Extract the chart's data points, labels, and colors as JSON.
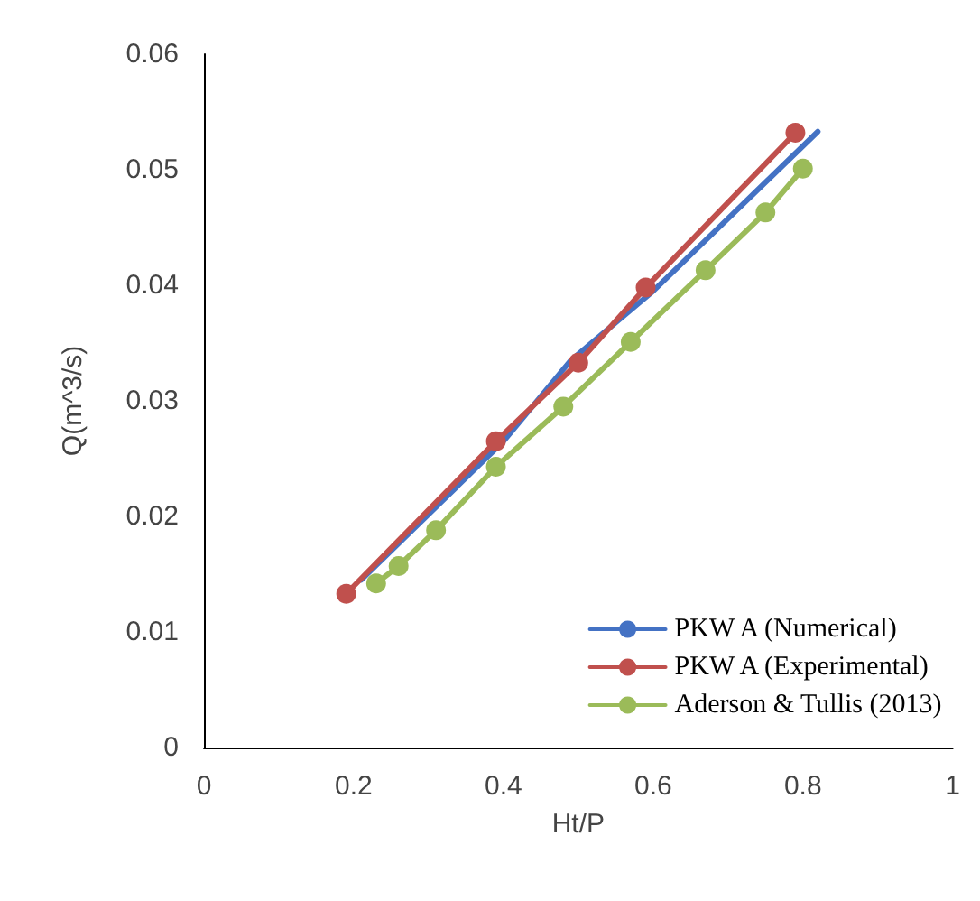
{
  "chart_data": {
    "type": "line",
    "xlabel": "Ht/P",
    "ylabel": "Q(m^3/s)",
    "xlim": [
      0,
      1
    ],
    "xticks": [
      0,
      0.2,
      0.4,
      0.6,
      0.8,
      1
    ],
    "ylim": [
      0,
      0.06
    ],
    "yticks": [
      0,
      0.01,
      0.02,
      0.03,
      0.04,
      0.05,
      0.06
    ],
    "grid": false,
    "legend": "bottom right",
    "series": [
      {
        "name": "PKW A (Numerical)",
        "color": "#4472c4",
        "marker": "none",
        "x": [
          0.21,
          0.4,
          0.49,
          0.6,
          0.82
        ],
        "values": [
          0.0145,
          0.0265,
          0.0335,
          0.0395,
          0.0533
        ]
      },
      {
        "name": "PKW A (Experimental)",
        "color": "#c0504d",
        "marker": "circle",
        "x": [
          0.19,
          0.39,
          0.5,
          0.59,
          0.79
        ],
        "values": [
          0.0133,
          0.0265,
          0.0333,
          0.0398,
          0.0532
        ]
      },
      {
        "name": "Aderson & Tullis (2013)",
        "color": "#9bbb59",
        "marker": "circle",
        "x": [
          0.23,
          0.26,
          0.31,
          0.39,
          0.48,
          0.57,
          0.67,
          0.75,
          0.8
        ],
        "values": [
          0.0142,
          0.0157,
          0.0188,
          0.0243,
          0.0295,
          0.0351,
          0.0413,
          0.0463,
          0.0501
        ]
      }
    ]
  }
}
